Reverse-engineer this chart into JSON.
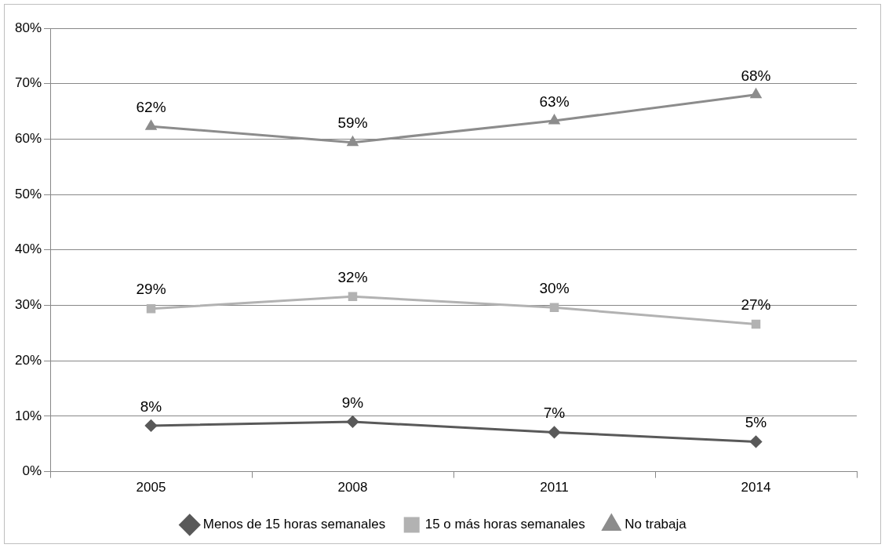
{
  "chart_data": {
    "type": "line",
    "categories": [
      "2005",
      "2008",
      "2011",
      "2014"
    ],
    "series": [
      {
        "name": "Menos de 15 horas semanales",
        "color": "#595959",
        "marker": "diamond",
        "values": [
          8.3,
          9,
          7.1,
          5.4
        ],
        "value_labels": [
          "8%",
          "9%",
          "7%",
          "5%"
        ]
      },
      {
        "name": "15 o más horas semanales",
        "color": "#b2b2b2",
        "marker": "square",
        "values": [
          29.4,
          31.6,
          29.6,
          26.6
        ],
        "value_labels": [
          "29%",
          "32%",
          "30%",
          "27%"
        ]
      },
      {
        "name": "No trabaja",
        "color": "#8c8c8c",
        "marker": "triangle",
        "values": [
          62.3,
          59.4,
          63.3,
          68
        ],
        "value_labels": [
          "62%",
          "59%",
          "63%",
          "68%"
        ]
      }
    ],
    "ylim": [
      0,
      80
    ],
    "yticks": [
      {
        "value": 0,
        "label": "0%"
      },
      {
        "value": 10,
        "label": "10%"
      },
      {
        "value": 20,
        "label": "20%"
      },
      {
        "value": 30,
        "label": "30%"
      },
      {
        "value": 40,
        "label": "40%"
      },
      {
        "value": 50,
        "label": "50%"
      },
      {
        "value": 60,
        "label": "60%"
      },
      {
        "value": 70,
        "label": "70%"
      },
      {
        "value": 80,
        "label": "80%"
      }
    ],
    "grid": "y",
    "legend": "bottom",
    "line_style": "solid"
  }
}
